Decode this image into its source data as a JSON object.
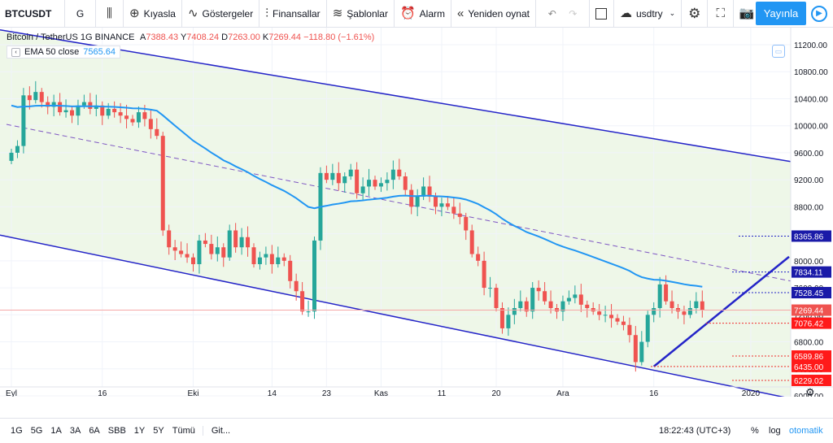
{
  "toolbar": {
    "symbol": "BTCUSDT",
    "interval": "G",
    "compare": "Kıyasla",
    "indicators": "Göstergeler",
    "financials": "Finansallar",
    "templates": "Şablonlar",
    "alert": "Alarm",
    "replay": "Yeniden oynat",
    "layout_name": "usdtry",
    "publish": "Yayınla"
  },
  "legend": {
    "title": "Bitcoin / TetherUS  1G  BINANCE",
    "o_label": "A",
    "o": "7388.43",
    "h_label": "Y",
    "h": "7408.24",
    "l_label": "D",
    "l": "7263.00",
    "c_label": "K",
    "c": "7269.44",
    "change": "−118.80 (−1.61%)"
  },
  "ema": {
    "label": "EMA 50 close",
    "value": "7565.64"
  },
  "colors": {
    "up": "#26a69a",
    "down": "#ef5350",
    "ema": "#2196f3",
    "channel": "#2424c8",
    "fill": "#eef7e8"
  },
  "chart_data": {
    "type": "candlestick",
    "title": "Bitcoin / TetherUS  1G  BINANCE",
    "y_ticks": [
      11200,
      10800,
      10400,
      10000,
      9600,
      9200,
      8800,
      8400,
      8000,
      7600,
      7200,
      6800,
      6400,
      6000
    ],
    "y_range": [
      5930,
      11400
    ],
    "x_ticks": [
      {
        "label": "Eyl",
        "day": 0
      },
      {
        "label": "16",
        "day": 15
      },
      {
        "label": "Eki",
        "day": 30
      },
      {
        "label": "14",
        "day": 43
      },
      {
        "label": "23",
        "day": 52
      },
      {
        "label": "Kas",
        "day": 61
      },
      {
        "label": "11",
        "day": 71
      },
      {
        "label": "20",
        "day": 80
      },
      {
        "label": "Ara",
        "day": 91
      },
      {
        "label": "16",
        "day": 106
      },
      {
        "label": "2020",
        "day": 122
      }
    ],
    "price_labels": [
      {
        "value": "8365.86",
        "kind": "blue"
      },
      {
        "value": "7834.11",
        "kind": "blue"
      },
      {
        "value": "7528.45",
        "kind": "blue"
      },
      {
        "value": "7269.44",
        "kind": "current"
      },
      {
        "value": "7076.42",
        "kind": "red"
      },
      {
        "value": "6589.86",
        "kind": "red"
      },
      {
        "value": "6435.00",
        "kind": "red"
      },
      {
        "value": "6229.02",
        "kind": "red"
      }
    ],
    "candles_close": [
      9600,
      9700,
      10450,
      10380,
      10500,
      10350,
      10280,
      10350,
      10200,
      10230,
      10150,
      10300,
      10350,
      10250,
      10300,
      10150,
      10250,
      10200,
      10150,
      10100,
      10050,
      10200,
      10100,
      9950,
      9850,
      8450,
      8200,
      8150,
      8100,
      8050,
      7950,
      8300,
      8250,
      8100,
      8200,
      8050,
      8450,
      8200,
      8350,
      8200,
      7950,
      8050,
      8100,
      7950,
      8050,
      8000,
      7700,
      7550,
      7250,
      7250,
      8300,
      9300,
      9200,
      9300,
      9150,
      9250,
      9350,
      9000,
      9100,
      9200,
      9100,
      9150,
      9200,
      9350,
      9250,
      9050,
      8800,
      8950,
      9100,
      8950,
      8800,
      8850,
      8800,
      8700,
      8650,
      8450,
      8100,
      8000,
      7600,
      7600,
      7300,
      7000,
      7200,
      7300,
      7400,
      7250,
      7600,
      7550,
      7400,
      7300,
      7250,
      7400,
      7450,
      7500,
      7350,
      7300,
      7250,
      7200,
      7200,
      7150,
      7100,
      7050,
      6900,
      6500,
      6800,
      7200,
      7300,
      7650,
      7400,
      7300,
      7250,
      7200,
      7300,
      7400,
      7269.44
    ],
    "ema50_value": 7565.64
  },
  "bottom": {
    "ranges": [
      "1G",
      "5G",
      "1A",
      "3A",
      "6A",
      "SBB",
      "1Y",
      "5Y",
      "Tümü"
    ],
    "goto": "Git...",
    "time": "18:22:43 (UTC+3)",
    "percent": "%",
    "log": "log",
    "auto": "otomatik"
  }
}
